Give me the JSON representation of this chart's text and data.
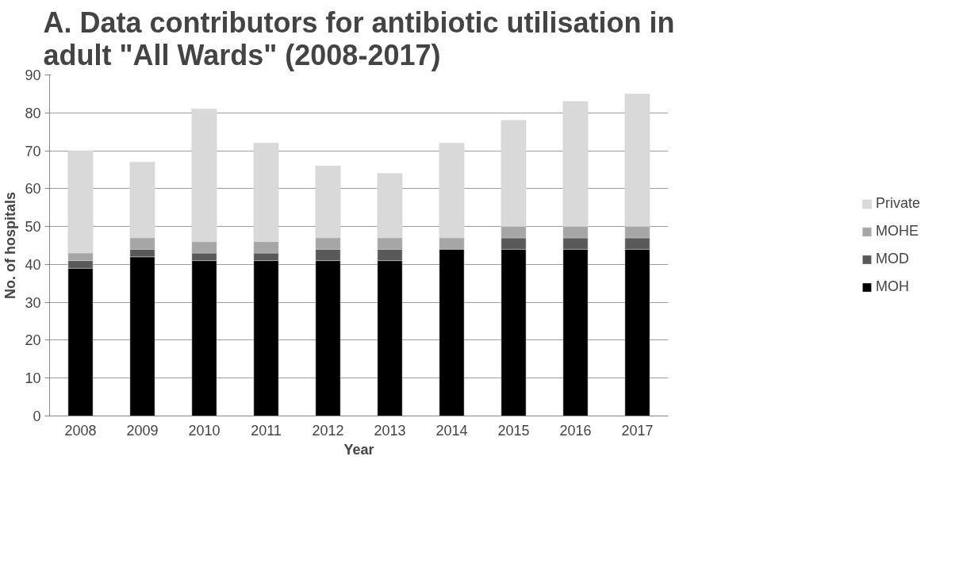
{
  "chart_data": {
    "type": "bar",
    "stacked": true,
    "title": "A. Data contributors for antibiotic utilisation in adult \"All Wards\" (2008-2017)",
    "xlabel": "Year",
    "ylabel": "No. of hospitals",
    "categories": [
      "2008",
      "2009",
      "2010",
      "2011",
      "2012",
      "2013",
      "2014",
      "2015",
      "2016",
      "2017"
    ],
    "series": [
      {
        "name": "MOH",
        "color": "#000000",
        "values": [
          39,
          42,
          41,
          41,
          41,
          41,
          44,
          44,
          44,
          44
        ]
      },
      {
        "name": "MOD",
        "color": "#595959",
        "values": [
          2,
          2,
          2,
          2,
          3,
          3,
          0,
          3,
          3,
          3
        ]
      },
      {
        "name": "MOHE",
        "color": "#a6a6a6",
        "values": [
          2,
          3,
          3,
          3,
          3,
          3,
          3,
          3,
          3,
          3
        ]
      },
      {
        "name": "Private",
        "color": "#d9d9d9",
        "values": [
          27,
          20,
          35,
          26,
          19,
          17,
          25,
          28,
          33,
          35
        ]
      }
    ],
    "ylim": [
      0,
      90
    ],
    "yticks": [
      0,
      10,
      20,
      30,
      40,
      50,
      60,
      70,
      80,
      90
    ],
    "grid": "y",
    "legend": "right"
  }
}
